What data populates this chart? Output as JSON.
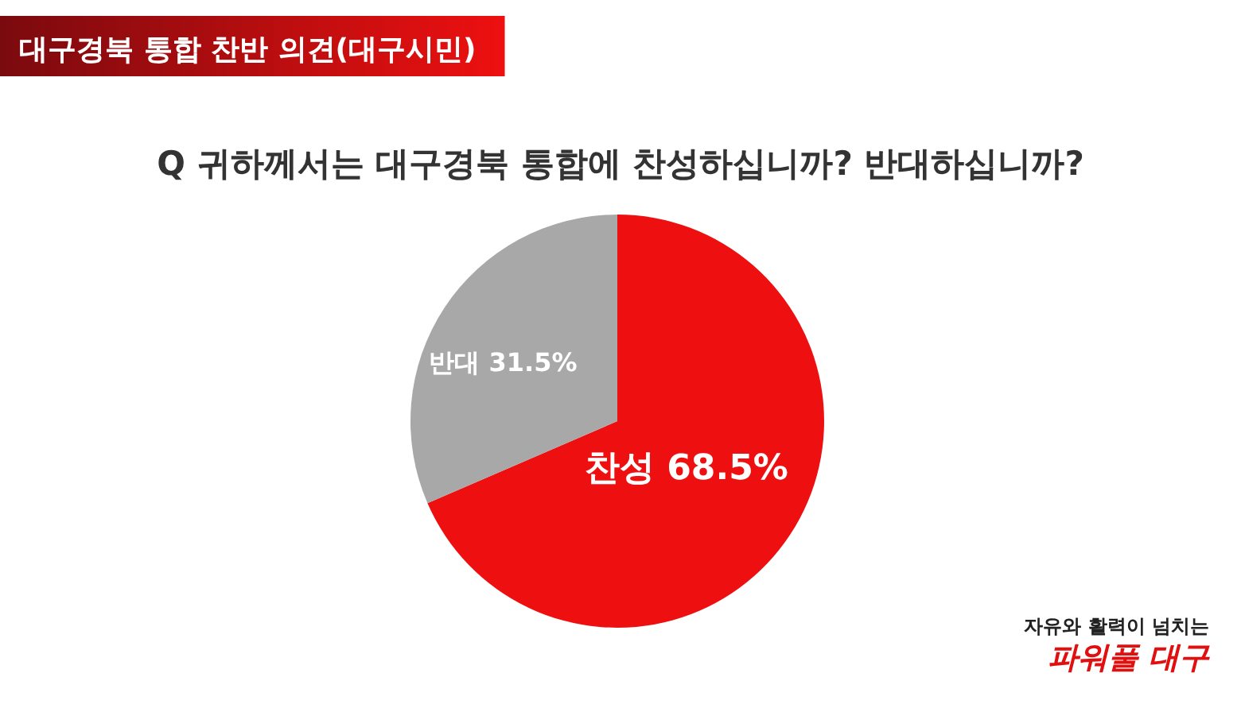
{
  "chart_data": {
    "type": "pie",
    "title": "대구경북 통합 찬반 의견(대구시민)",
    "subtitle": "Q 귀하께서는 대구경북 통합에 찬성하십니까? 반대하십니까?",
    "categories": [
      "찬성",
      "반대"
    ],
    "values": [
      68.5,
      31.5
    ],
    "value_labels": [
      "68.5%",
      "31.5%"
    ],
    "colors": [
      "#ee1010",
      "#a8a8a8"
    ],
    "annotations": [
      "자유와 활력이 넘치는",
      "파워풀 대구"
    ]
  }
}
